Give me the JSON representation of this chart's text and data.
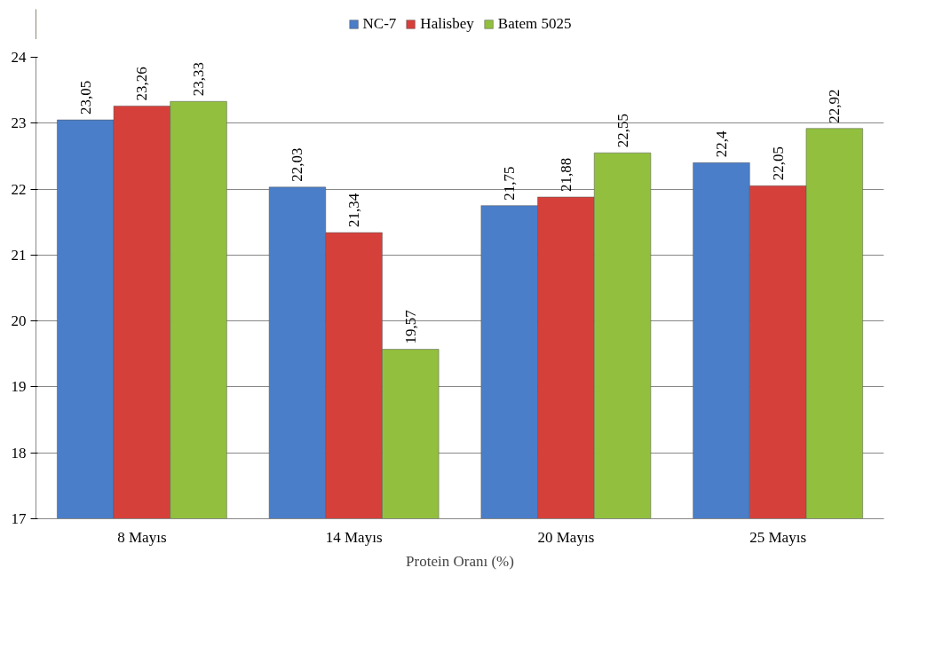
{
  "chart_data": {
    "type": "bar",
    "xlabel": "Protein Oranı (%)",
    "categories": [
      "8 Mayıs",
      "14 Mayıs",
      "20 Mayıs",
      "25 Mayıs"
    ],
    "series": [
      {
        "name": "NC-7",
        "color": "#4a7ec8",
        "values": [
          23.05,
          22.03,
          21.75,
          22.4
        ],
        "value_labels": [
          "23,05",
          "22,03",
          "21,75",
          "22,4"
        ]
      },
      {
        "name": "Halisbey",
        "color": "#d6403b",
        "values": [
          23.26,
          21.34,
          21.88,
          22.05
        ],
        "value_labels": [
          "23,26",
          "21,34",
          "21,88",
          "22,05"
        ]
      },
      {
        "name": "Batem 5025",
        "color": "#92c03e",
        "values": [
          23.33,
          19.57,
          22.55,
          22.92
        ],
        "value_labels": [
          "23,33",
          "19,57",
          "22,55",
          "22,92"
        ]
      }
    ],
    "ylim": [
      17,
      24
    ],
    "yticks": [
      17,
      18,
      19,
      20,
      21,
      22,
      23,
      24
    ],
    "grid": "y",
    "legend": "top"
  }
}
